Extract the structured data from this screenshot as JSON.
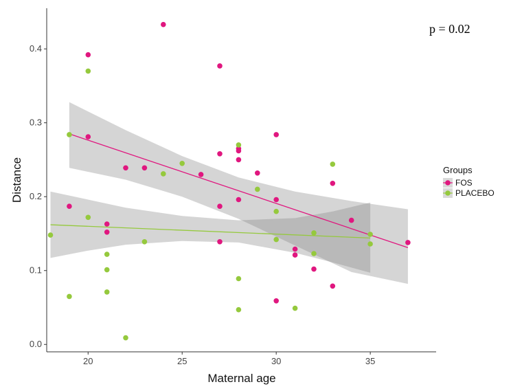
{
  "chart_data": {
    "type": "scatter",
    "title": "",
    "xlabel": "Maternal age",
    "ylabel": "Distance",
    "xlim": [
      17.8,
      38.5
    ],
    "ylim": [
      -0.01,
      0.455
    ],
    "xticks": [
      20,
      25,
      30,
      35
    ],
    "yticks": [
      0.0,
      0.1,
      0.2,
      0.3,
      0.4
    ],
    "ytick_labels": [
      "0.0",
      "0.1",
      "0.2",
      "0.3",
      "0.4"
    ],
    "grid": false,
    "annotation": "p = 0.02",
    "legend": {
      "title": "Groups",
      "position": "right"
    },
    "series": [
      {
        "name": "FOS",
        "color": "#e0177f",
        "points": [
          [
            19,
            0.187
          ],
          [
            20,
            0.392
          ],
          [
            20,
            0.281
          ],
          [
            21,
            0.163
          ],
          [
            21,
            0.152
          ],
          [
            22,
            0.239
          ],
          [
            23,
            0.239
          ],
          [
            24,
            0.433
          ],
          [
            26,
            0.23
          ],
          [
            27,
            0.377
          ],
          [
            27,
            0.258
          ],
          [
            27,
            0.187
          ],
          [
            27,
            0.139
          ],
          [
            28,
            0.265
          ],
          [
            28,
            0.262
          ],
          [
            28,
            0.25
          ],
          [
            28,
            0.196
          ],
          [
            29,
            0.232
          ],
          [
            30,
            0.284
          ],
          [
            30,
            0.196
          ],
          [
            30,
            0.059
          ],
          [
            31,
            0.129
          ],
          [
            31,
            0.121
          ],
          [
            32,
            0.102
          ],
          [
            33,
            0.218
          ],
          [
            33,
            0.079
          ],
          [
            34,
            0.168
          ],
          [
            37,
            0.138
          ]
        ],
        "fit": {
          "x": [
            19,
            37
          ],
          "y": [
            0.285,
            0.131
          ]
        },
        "ci_upper": {
          "x": [
            19,
            22,
            25,
            28,
            31,
            34,
            37
          ],
          "y": [
            0.328,
            0.29,
            0.255,
            0.226,
            0.207,
            0.194,
            0.183
          ]
        },
        "ci_lower": {
          "x": [
            19,
            22,
            25,
            28,
            31,
            34,
            37
          ],
          "y": [
            0.239,
            0.223,
            0.2,
            0.17,
            0.134,
            0.098,
            0.082
          ]
        }
      },
      {
        "name": "PLACEBO",
        "color": "#95c93d",
        "points": [
          [
            18,
            0.148
          ],
          [
            19,
            0.284
          ],
          [
            19,
            0.065
          ],
          [
            20,
            0.37
          ],
          [
            20,
            0.172
          ],
          [
            21,
            0.122
          ],
          [
            21,
            0.101
          ],
          [
            21,
            0.071
          ],
          [
            22,
            0.009
          ],
          [
            23,
            0.139
          ],
          [
            24,
            0.231
          ],
          [
            25,
            0.245
          ],
          [
            28,
            0.27
          ],
          [
            28,
            0.089
          ],
          [
            28,
            0.047
          ],
          [
            29,
            0.21
          ],
          [
            30,
            0.18
          ],
          [
            30,
            0.142
          ],
          [
            31,
            0.049
          ],
          [
            32,
            0.151
          ],
          [
            32,
            0.123
          ],
          [
            33,
            0.244
          ],
          [
            35,
            0.149
          ],
          [
            35,
            0.136
          ]
        ],
        "fit": {
          "x": [
            18,
            35
          ],
          "y": [
            0.162,
            0.144
          ]
        },
        "ci_upper": {
          "x": [
            18,
            20,
            22,
            25,
            28,
            31,
            33,
            35
          ],
          "y": [
            0.207,
            0.196,
            0.185,
            0.174,
            0.168,
            0.171,
            0.18,
            0.192
          ]
        },
        "ci_lower": {
          "x": [
            18,
            20,
            22,
            25,
            28,
            31,
            33,
            35
          ],
          "y": [
            0.117,
            0.127,
            0.135,
            0.14,
            0.138,
            0.124,
            0.111,
            0.097
          ]
        }
      }
    ]
  }
}
